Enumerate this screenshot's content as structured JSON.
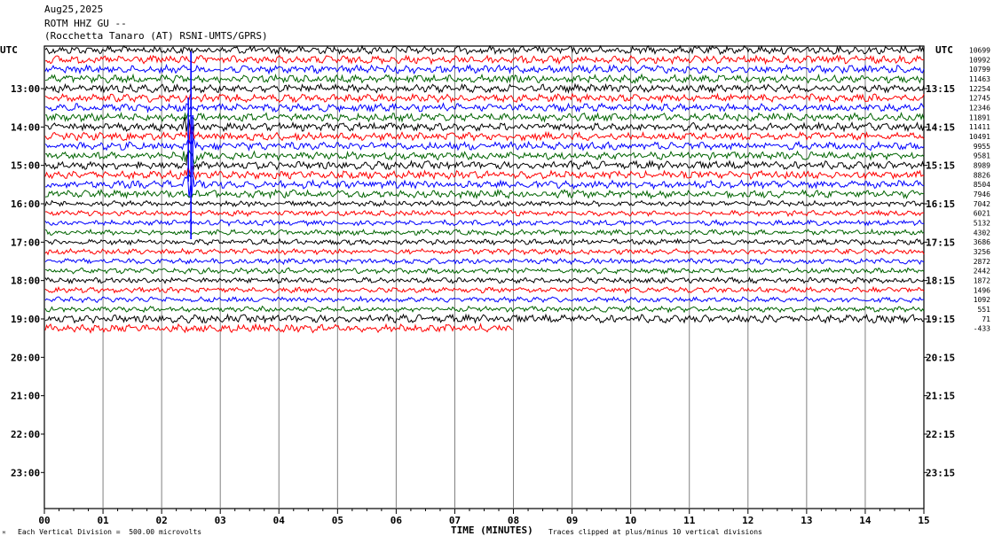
{
  "header": {
    "date": "Aug25,2025",
    "station": "ROTM HHZ GU --",
    "location": "(Rocchetta Tanaro (AT) RSNI-UMTS/GPRS)"
  },
  "chart_data": {
    "type": "line",
    "title": "ROTM HHZ GU --",
    "xlabel": "TIME (MINUTES)",
    "x_ticks": [
      "00",
      "01",
      "02",
      "03",
      "04",
      "05",
      "06",
      "07",
      "08",
      "09",
      "10",
      "11",
      "12",
      "13",
      "14",
      "15"
    ],
    "xlim": [
      0,
      15
    ],
    "left_axis_label": "UTC",
    "right_axis_label": "UTC",
    "left_time_labels": [
      "13:00",
      "14:00",
      "15:00",
      "16:00",
      "17:00",
      "18:00",
      "19:00",
      "20:00",
      "21:00",
      "22:00",
      "23:00"
    ],
    "right_time_labels": [
      "13:15",
      "14:15",
      "15:15",
      "16:15",
      "17:15",
      "18:15",
      "19:15",
      "20:15",
      "21:15",
      "22:15",
      "23:15"
    ],
    "trace_offsets": [
      "10699",
      "10992",
      "10799",
      "11463",
      "12254",
      "12745",
      "12346",
      "11891",
      "11411",
      "10491",
      "9955",
      "9581",
      "8989",
      "8826",
      "8504",
      "7946",
      "7042",
      "6021",
      "5132",
      "4302",
      "3686",
      "3256",
      "2872",
      "2442",
      "1872",
      "1496",
      "1092",
      "551",
      "71",
      "-433"
    ],
    "trace_colors": [
      "#000000",
      "#ff0000",
      "#0000ff",
      "#006400"
    ],
    "trace_count": 30,
    "last_trace_end_minute": 8.0,
    "events": [
      {
        "trace": 1,
        "minute": 2.5,
        "note": "large transient"
      },
      {
        "trace": 10,
        "minute": 2.45,
        "note": "strong burst"
      }
    ]
  },
  "footer": {
    "vertical_division": "Each Vertical Division =  500.00 microvolts",
    "clip_note": "Traces clipped at plus/minus 10 vertical divisions",
    "corner_mark": "ᴹ"
  }
}
